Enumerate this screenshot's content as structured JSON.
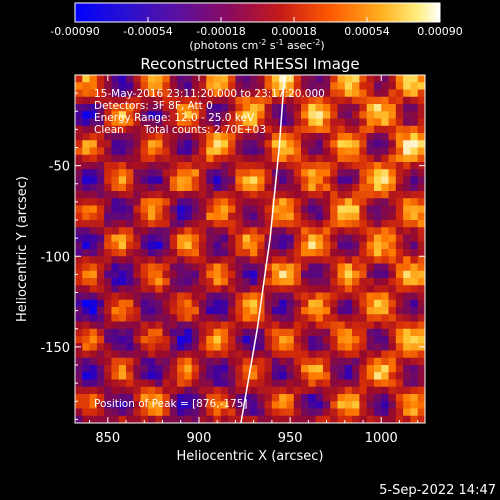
{
  "colorbar": {
    "tick_labels": [
      "-0.00090",
      "-0.00054",
      "-0.00018",
      "0.00018",
      "0.00054",
      "0.00090"
    ],
    "unit_line1_prefix": "(photons cm",
    "unit_sup1": "-2",
    "unit_mid1": " s",
    "unit_sup2": "-1",
    "unit_mid2": " asec",
    "unit_sup3": "-2",
    "unit_suffix": ")"
  },
  "title": "Reconstructed RHESSI Image",
  "annotations": {
    "line1": "15-May-2016 23:11:20.000 to 23:17:20.000",
    "line2": "Detectors: 3F 8F, Att 0",
    "line3": "Energy Range: 12.0 - 25.0 keV",
    "line4_a": "Clean",
    "line4_b": "Total counts: 2.70E+03",
    "peak": "Position of Peak = [876,-175]"
  },
  "footer_date": "5-Sep-2022 14:47",
  "chart_data": {
    "type": "heatmap",
    "title": "Reconstructed RHESSI Image",
    "xlabel": "Heliocentric X (arcsec)",
    "ylabel": "Heliocentric Y (arcsec)",
    "xlim": [
      832,
      1024
    ],
    "ylim": [
      -192,
      0
    ],
    "x_ticks": [
      850,
      900,
      950,
      1000
    ],
    "x_tick_labels": [
      "850",
      "900",
      "950",
      "1000"
    ],
    "y_ticks": [
      -50,
      -100,
      -150
    ],
    "y_tick_labels": [
      "-50",
      "-100",
      "-150"
    ],
    "value_range": [
      -0.0009,
      0.0009
    ],
    "colormap": [
      "#0000ff",
      "#3a00a8",
      "#6a0a6a",
      "#9b0a2a",
      "#d42a0a",
      "#ff7a00",
      "#ffd23a",
      "#ffffff"
    ],
    "limb_curve": [
      [
        947,
        0
      ],
      [
        944,
        -40
      ],
      [
        939,
        -90
      ],
      [
        932,
        -140
      ],
      [
        923,
        -192
      ]
    ],
    "peak_position": [
      876,
      -175
    ]
  }
}
